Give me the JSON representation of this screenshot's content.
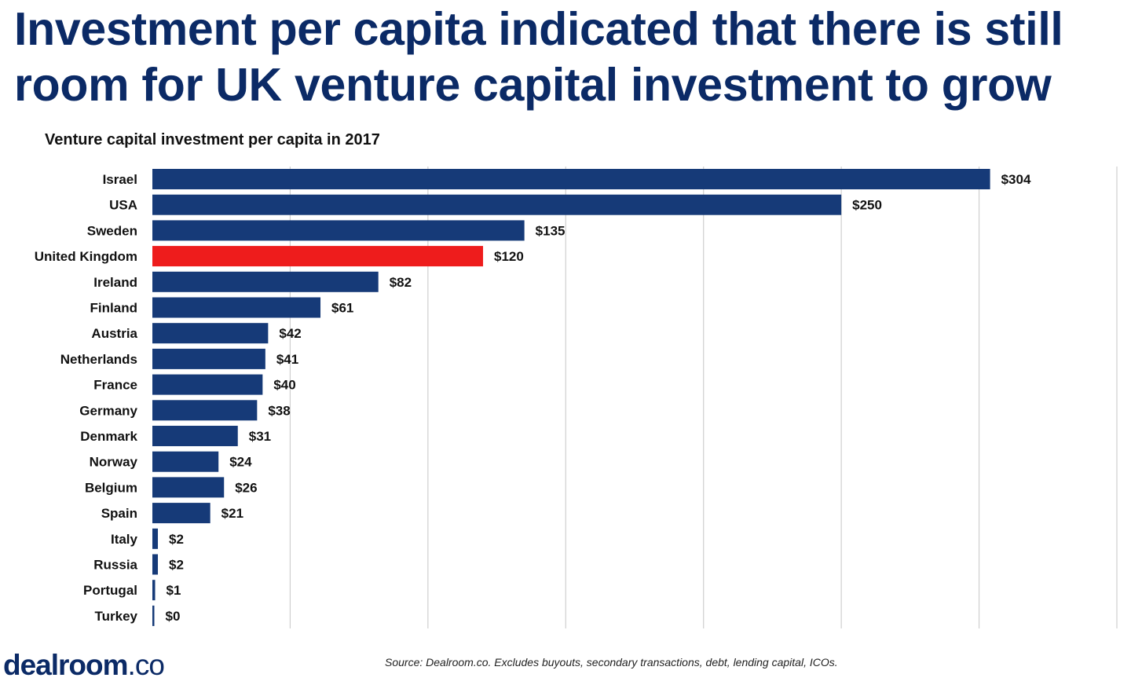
{
  "headline": "Investment per capita indicated that there is still room for UK venture capital investment to grow",
  "chart_data": {
    "type": "bar",
    "orientation": "horizontal",
    "title": "Venture capital investment per capita in 2017",
    "categories": [
      "Israel",
      "USA",
      "Sweden",
      "United Kingdom",
      "Ireland",
      "Finland",
      "Austria",
      "Netherlands",
      "France",
      "Germany",
      "Denmark",
      "Norway",
      "Belgium",
      "Spain",
      "Italy",
      "Russia",
      "Portugal",
      "Turkey"
    ],
    "values": [
      304,
      250,
      135,
      120,
      82,
      61,
      42,
      41,
      40,
      38,
      31,
      24,
      26,
      21,
      2,
      2,
      1,
      0
    ],
    "value_labels": [
      "$304",
      "$250",
      "$135",
      "$120",
      "$82",
      "$61",
      "$42",
      "$41",
      "$40",
      "$38",
      "$31",
      "$24",
      "$26",
      "$21",
      "$2",
      "$2",
      "$1",
      "$0"
    ],
    "highlight": "United Kingdom",
    "xlim": [
      0,
      350
    ],
    "grid": true,
    "xlabel": "",
    "ylabel": "",
    "colors": {
      "bar": "#163a78",
      "highlight": "#ee1c1c",
      "grid": "#cfcfcf"
    }
  },
  "logo": {
    "main": "dealroom",
    "suffix": ".co"
  },
  "source": "Source: Dealroom.co. Excludes buyouts, secondary transactions, debt, lending capital, ICOs."
}
